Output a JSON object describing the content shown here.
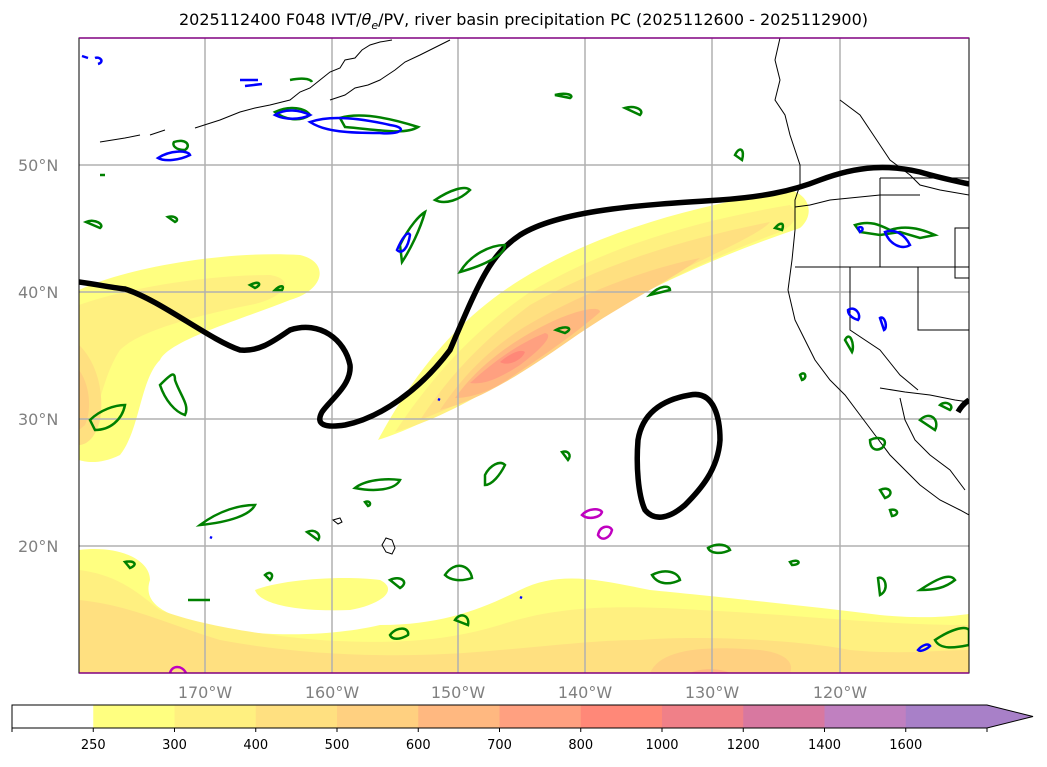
{
  "title": {
    "prefix": "2025112400 F048 IVT/",
    "theta": "θ",
    "theta_sub": "e",
    "suffix": "/PV, river basin precipitation PC (2025112600 - 2025112900)"
  },
  "map": {
    "projection": "PlateCarree",
    "extent": {
      "lon": [
        -180,
        -110
      ],
      "lat": [
        10,
        60
      ]
    },
    "lat_labels": [
      "50°N",
      "40°N",
      "30°N",
      "20°N"
    ],
    "lon_labels": [
      "170°W",
      "160°W",
      "150°W",
      "140°W",
      "130°W",
      "120°W"
    ],
    "gridline_color": "#b0b0b0",
    "label_color": "#808080"
  },
  "layers": {
    "ivt_shading": "IVT filled contours",
    "pv_contour_color": "#000000",
    "theta_e_contour_colors": [
      "#008000",
      "#0000ff",
      "#c000c0"
    ],
    "coastline_color": "#000000"
  },
  "colorbar": {
    "levels": [
      "250",
      "300",
      "400",
      "500",
      "600",
      "700",
      "800",
      "1000",
      "1200",
      "1400",
      "1600"
    ],
    "colors": [
      "#ffffff",
      "#ffff80",
      "#fff080",
      "#ffe080",
      "#ffd080",
      "#ffb880",
      "#ffa080",
      "#ff8878",
      "#f08088",
      "#d878a0",
      "#c080c0",
      "#a880c8"
    ],
    "extend": "max"
  }
}
